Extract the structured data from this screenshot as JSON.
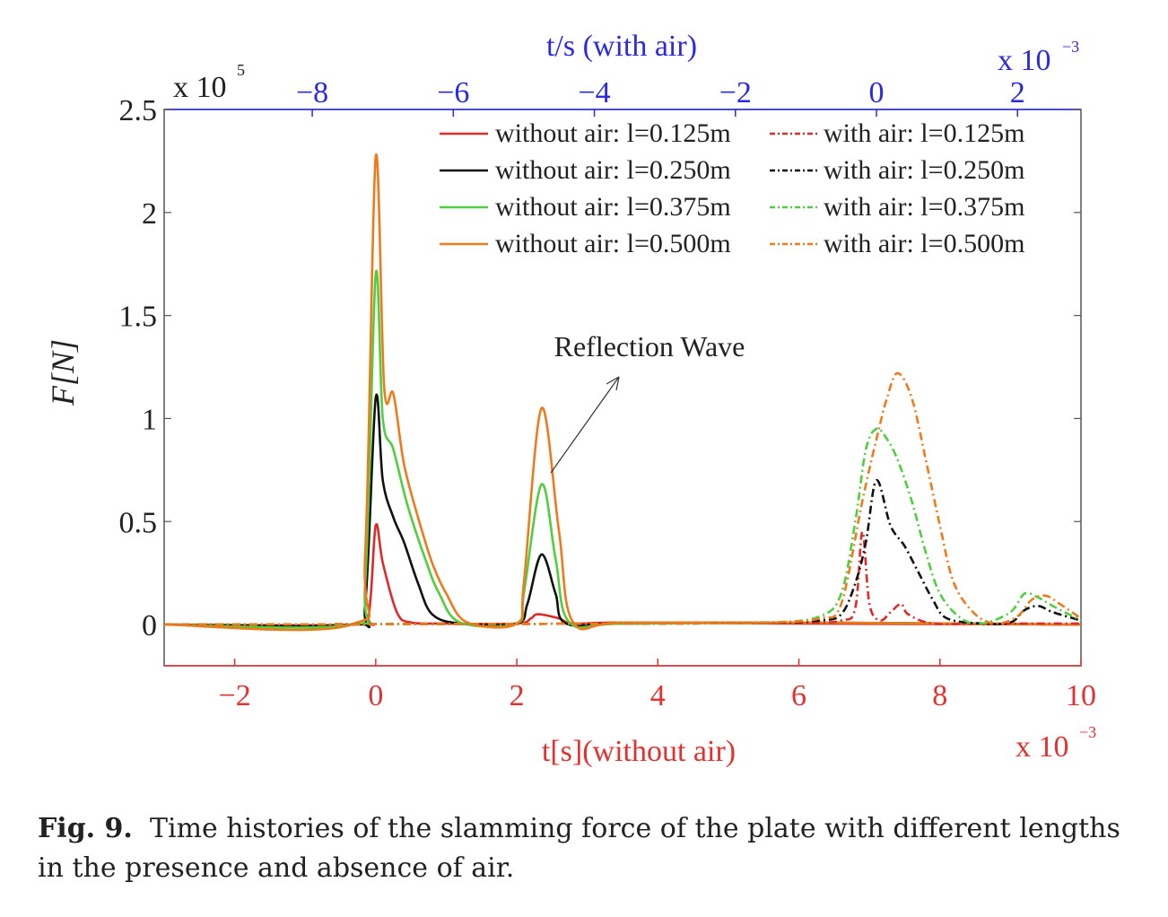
{
  "chart_data": {
    "type": "line",
    "ylabel": "F[N]",
    "y_multiplier": "x 10^5",
    "ylim": [
      -0.2,
      2.5
    ],
    "yticks": [
      "0",
      "0.5",
      "1",
      "1.5",
      "2",
      "2.5"
    ],
    "bottom_axis": {
      "label": "t[s](without air)",
      "multiplier": "x 10^-3",
      "range": [
        -3,
        10
      ],
      "ticks": [
        "-2",
        "0",
        "2",
        "4",
        "6",
        "8",
        "10"
      ],
      "color": "#e53030"
    },
    "top_axis": {
      "label": "t/s (with air)",
      "multiplier": "x 10^-3",
      "range": [
        -10.1,
        2.9
      ],
      "ticks": [
        "-8",
        "-6",
        "-4",
        "-2",
        "0",
        "2"
      ],
      "color": "#2a2ae0"
    },
    "legend_position": "top-right",
    "annotation": "Reflection Wave",
    "series": [
      {
        "name": "without air: l=0.125m",
        "color": "#e02a2a",
        "style": "solid",
        "x": [
          -3,
          -0.3,
          -0.1,
          0,
          0.1,
          0.3,
          0.5,
          1,
          2,
          2.2,
          2.3,
          2.6,
          2.8,
          3.5,
          6,
          10
        ],
        "y": [
          0,
          0,
          0.05,
          0.48,
          0.3,
          0.06,
          0.01,
          0.005,
          0.005,
          0.03,
          0.05,
          0.03,
          0.005,
          0.01,
          0.005,
          0
        ]
      },
      {
        "name": "without air: l=0.250m",
        "color": "#111111",
        "style": "solid",
        "x": [
          -3,
          -0.35,
          -0.15,
          0,
          0.1,
          0.25,
          0.4,
          0.6,
          0.8,
          1.2,
          2,
          2.15,
          2.35,
          2.55,
          2.7,
          3.5,
          6,
          10
        ],
        "y": [
          0,
          0,
          0.1,
          1.1,
          0.7,
          0.52,
          0.4,
          0.2,
          0.05,
          0.005,
          0.005,
          0.1,
          0.34,
          0.15,
          0.005,
          0.005,
          0.01,
          0
        ]
      },
      {
        "name": "without air: l=0.375m",
        "color": "#4fcf3f",
        "style": "solid",
        "x": [
          -3,
          -0.35,
          -0.15,
          0,
          0.1,
          0.25,
          0.45,
          0.7,
          0.9,
          1.2,
          2,
          2.1,
          2.35,
          2.55,
          2.75,
          3.5,
          6,
          10
        ],
        "y": [
          0,
          0,
          0.2,
          1.7,
          1.0,
          0.85,
          0.58,
          0.32,
          0.15,
          0.01,
          0.005,
          0.15,
          0.68,
          0.32,
          0.01,
          0.005,
          0.01,
          0
        ]
      },
      {
        "name": "without air: l=0.500m",
        "color": "#f07a1a",
        "style": "solid",
        "x": [
          -3,
          -0.35,
          -0.15,
          0,
          0.12,
          0.25,
          0.4,
          0.6,
          0.8,
          1.0,
          1.3,
          2,
          2.1,
          2.35,
          2.6,
          2.8,
          3.5,
          6,
          10
        ],
        "y": [
          0,
          0,
          0.35,
          2.27,
          1.15,
          1.12,
          0.78,
          0.52,
          0.3,
          0.15,
          0.01,
          0.005,
          0.2,
          1.05,
          0.45,
          0.01,
          0.01,
          0.01,
          0
        ]
      },
      {
        "name": "with air: l=0.125m",
        "color": "#e02a2a",
        "style": "dashdot",
        "x": [
          -10.1,
          -3,
          -1,
          -0.5,
          -0.3,
          -0.2,
          -0.1,
          0.05,
          0.2,
          0.35,
          0.45,
          0.8,
          1.5,
          2.9
        ],
        "y": [
          0,
          0.005,
          0.01,
          0.02,
          0.08,
          0.45,
          0.1,
          0.02,
          0.06,
          0.1,
          0.05,
          0.005,
          0.005,
          0.005
        ]
      },
      {
        "name": "with air: l=0.250m",
        "color": "#111111",
        "style": "dashdot",
        "x": [
          -10.1,
          -3,
          -1.5,
          -0.8,
          -0.5,
          -0.3,
          -0.15,
          0,
          0.2,
          0.4,
          0.6,
          0.8,
          1.0,
          1.5,
          1.9,
          2.1,
          2.3,
          2.5,
          2.9
        ],
        "y": [
          0,
          0.005,
          0.01,
          0.02,
          0.05,
          0.2,
          0.4,
          0.7,
          0.48,
          0.38,
          0.25,
          0.12,
          0.03,
          0.005,
          0.01,
          0.07,
          0.09,
          0.06,
          0.02
        ]
      },
      {
        "name": "with air: l=0.375m",
        "color": "#4fcf3f",
        "style": "dashdot",
        "x": [
          -10.1,
          -3,
          -1.5,
          -0.8,
          -0.5,
          -0.3,
          -0.15,
          0,
          0.15,
          0.3,
          0.5,
          0.7,
          0.9,
          1.2,
          1.5,
          1.9,
          2.1,
          2.3,
          2.5,
          2.9
        ],
        "y": [
          0,
          0.005,
          0.01,
          0.04,
          0.15,
          0.5,
          0.85,
          0.95,
          0.9,
          0.8,
          0.6,
          0.35,
          0.15,
          0.03,
          0.005,
          0.06,
          0.15,
          0.13,
          0.09,
          0.02
        ]
      },
      {
        "name": "with air: l=0.500m",
        "color": "#f07a1a",
        "style": "dashdot",
        "x": [
          -10.1,
          -3,
          -1.5,
          -0.8,
          -0.5,
          -0.2,
          0,
          0.15,
          0.3,
          0.5,
          0.7,
          0.9,
          1.1,
          1.4,
          1.7,
          2.0,
          2.2,
          2.4,
          2.6,
          2.9
        ],
        "y": [
          0,
          0.005,
          0.01,
          0.03,
          0.1,
          0.6,
          0.9,
          1.1,
          1.22,
          1.1,
          0.8,
          0.48,
          0.2,
          0.05,
          0.005,
          0.04,
          0.12,
          0.14,
          0.1,
          0.03
        ]
      }
    ]
  },
  "caption": {
    "label": "Fig. 9.",
    "text": "Time histories of the slamming force of the plate with different lengths in the presence and absence of air."
  }
}
